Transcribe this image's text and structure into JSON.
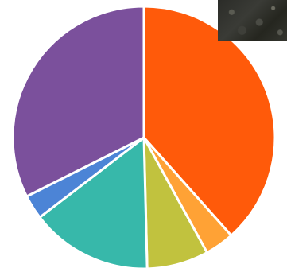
{
  "chart_data": {
    "type": "pie",
    "slices": [
      {
        "value": 38.4,
        "color": "#ff5a0a"
      },
      {
        "value": 3.6,
        "color": "#ffa235"
      },
      {
        "value": 7.6,
        "color": "#c1c23e"
      },
      {
        "value": 15.0,
        "color": "#37b8aa"
      },
      {
        "value": 3.0,
        "color": "#4c84d6"
      },
      {
        "value": 32.4,
        "color": "#7b509c"
      }
    ],
    "start_angle_deg": 0,
    "direction": "clockwise",
    "slice_border_color": "#ffffff",
    "legend": "none"
  },
  "thumbnail": {
    "icon": "photo-thumbnail"
  }
}
